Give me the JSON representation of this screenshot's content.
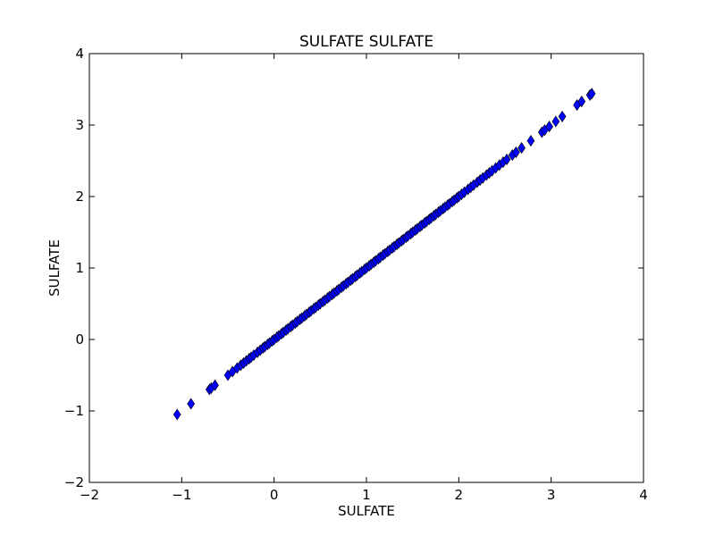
{
  "chart_data": {
    "type": "scatter",
    "title": "SULFATE SULFATE",
    "xlabel": "SULFATE",
    "ylabel": "SULFATE",
    "xlim": [
      -2,
      4
    ],
    "ylim": [
      -2,
      4
    ],
    "xticks": [
      -2,
      -1,
      0,
      1,
      2,
      3,
      4
    ],
    "yticks": [
      -2,
      -1,
      0,
      1,
      2,
      3,
      4
    ],
    "xtick_labels": [
      "−2",
      "−1",
      "0",
      "1",
      "2",
      "3",
      "4"
    ],
    "ytick_labels": [
      "−2",
      "−1",
      "0",
      "1",
      "2",
      "3",
      "4"
    ],
    "marker": "diamond",
    "marker_color": "#0000ff",
    "marker_edge_color": "#000000",
    "grid": false,
    "series": [
      {
        "x": [
          -1.05,
          -0.9,
          -0.7,
          -0.68,
          -0.64,
          -0.5,
          -0.45,
          -0.4,
          -0.36,
          -0.33,
          -0.3,
          -0.27,
          -0.25,
          -0.22,
          -0.18,
          -0.15,
          -0.12,
          -0.1,
          -0.07,
          -0.05,
          -0.02,
          0.0,
          0.03,
          0.05,
          0.08,
          0.1,
          0.13,
          0.15,
          0.18,
          0.2,
          0.23,
          0.25,
          0.28,
          0.3,
          0.33,
          0.35,
          0.38,
          0.4,
          0.43,
          0.45,
          0.48,
          0.5,
          0.53,
          0.55,
          0.58,
          0.6,
          0.63,
          0.65,
          0.68,
          0.7,
          0.73,
          0.75,
          0.78,
          0.8,
          0.83,
          0.85,
          0.88,
          0.9,
          0.93,
          0.95,
          0.98,
          1.0,
          1.03,
          1.05,
          1.08,
          1.1,
          1.13,
          1.15,
          1.18,
          1.2,
          1.23,
          1.25,
          1.28,
          1.3,
          1.33,
          1.35,
          1.38,
          1.4,
          1.43,
          1.45,
          1.48,
          1.5,
          1.53,
          1.55,
          1.58,
          1.6,
          1.63,
          1.65,
          1.68,
          1.7,
          1.73,
          1.75,
          1.78,
          1.8,
          1.83,
          1.85,
          1.88,
          1.9,
          1.93,
          1.95,
          1.98,
          2.0,
          2.03,
          2.06,
          2.1,
          2.13,
          2.16,
          2.2,
          2.23,
          2.26,
          2.3,
          2.33,
          2.36,
          2.4,
          2.44,
          2.48,
          2.52,
          2.58,
          2.62,
          2.68,
          2.78,
          2.9,
          2.93,
          2.98,
          3.05,
          3.12,
          3.28,
          3.33,
          3.42,
          3.44
        ],
        "y": [
          -1.05,
          -0.9,
          -0.7,
          -0.68,
          -0.64,
          -0.5,
          -0.45,
          -0.4,
          -0.36,
          -0.33,
          -0.3,
          -0.27,
          -0.25,
          -0.22,
          -0.18,
          -0.15,
          -0.12,
          -0.1,
          -0.07,
          -0.05,
          -0.02,
          0.0,
          0.03,
          0.05,
          0.08,
          0.1,
          0.13,
          0.15,
          0.18,
          0.2,
          0.23,
          0.25,
          0.28,
          0.3,
          0.33,
          0.35,
          0.38,
          0.4,
          0.43,
          0.45,
          0.48,
          0.5,
          0.53,
          0.55,
          0.58,
          0.6,
          0.63,
          0.65,
          0.68,
          0.7,
          0.73,
          0.75,
          0.78,
          0.8,
          0.83,
          0.85,
          0.88,
          0.9,
          0.93,
          0.95,
          0.98,
          1.0,
          1.03,
          1.05,
          1.08,
          1.1,
          1.13,
          1.15,
          1.18,
          1.2,
          1.23,
          1.25,
          1.28,
          1.3,
          1.33,
          1.35,
          1.38,
          1.4,
          1.43,
          1.45,
          1.48,
          1.5,
          1.53,
          1.55,
          1.58,
          1.6,
          1.63,
          1.65,
          1.68,
          1.7,
          1.73,
          1.75,
          1.78,
          1.8,
          1.83,
          1.85,
          1.88,
          1.9,
          1.93,
          1.95,
          1.98,
          2.0,
          2.03,
          2.06,
          2.1,
          2.13,
          2.16,
          2.2,
          2.23,
          2.26,
          2.3,
          2.33,
          2.36,
          2.4,
          2.44,
          2.48,
          2.52,
          2.58,
          2.62,
          2.68,
          2.78,
          2.9,
          2.93,
          2.98,
          3.05,
          3.12,
          3.28,
          3.33,
          3.42,
          3.44
        ]
      }
    ]
  }
}
